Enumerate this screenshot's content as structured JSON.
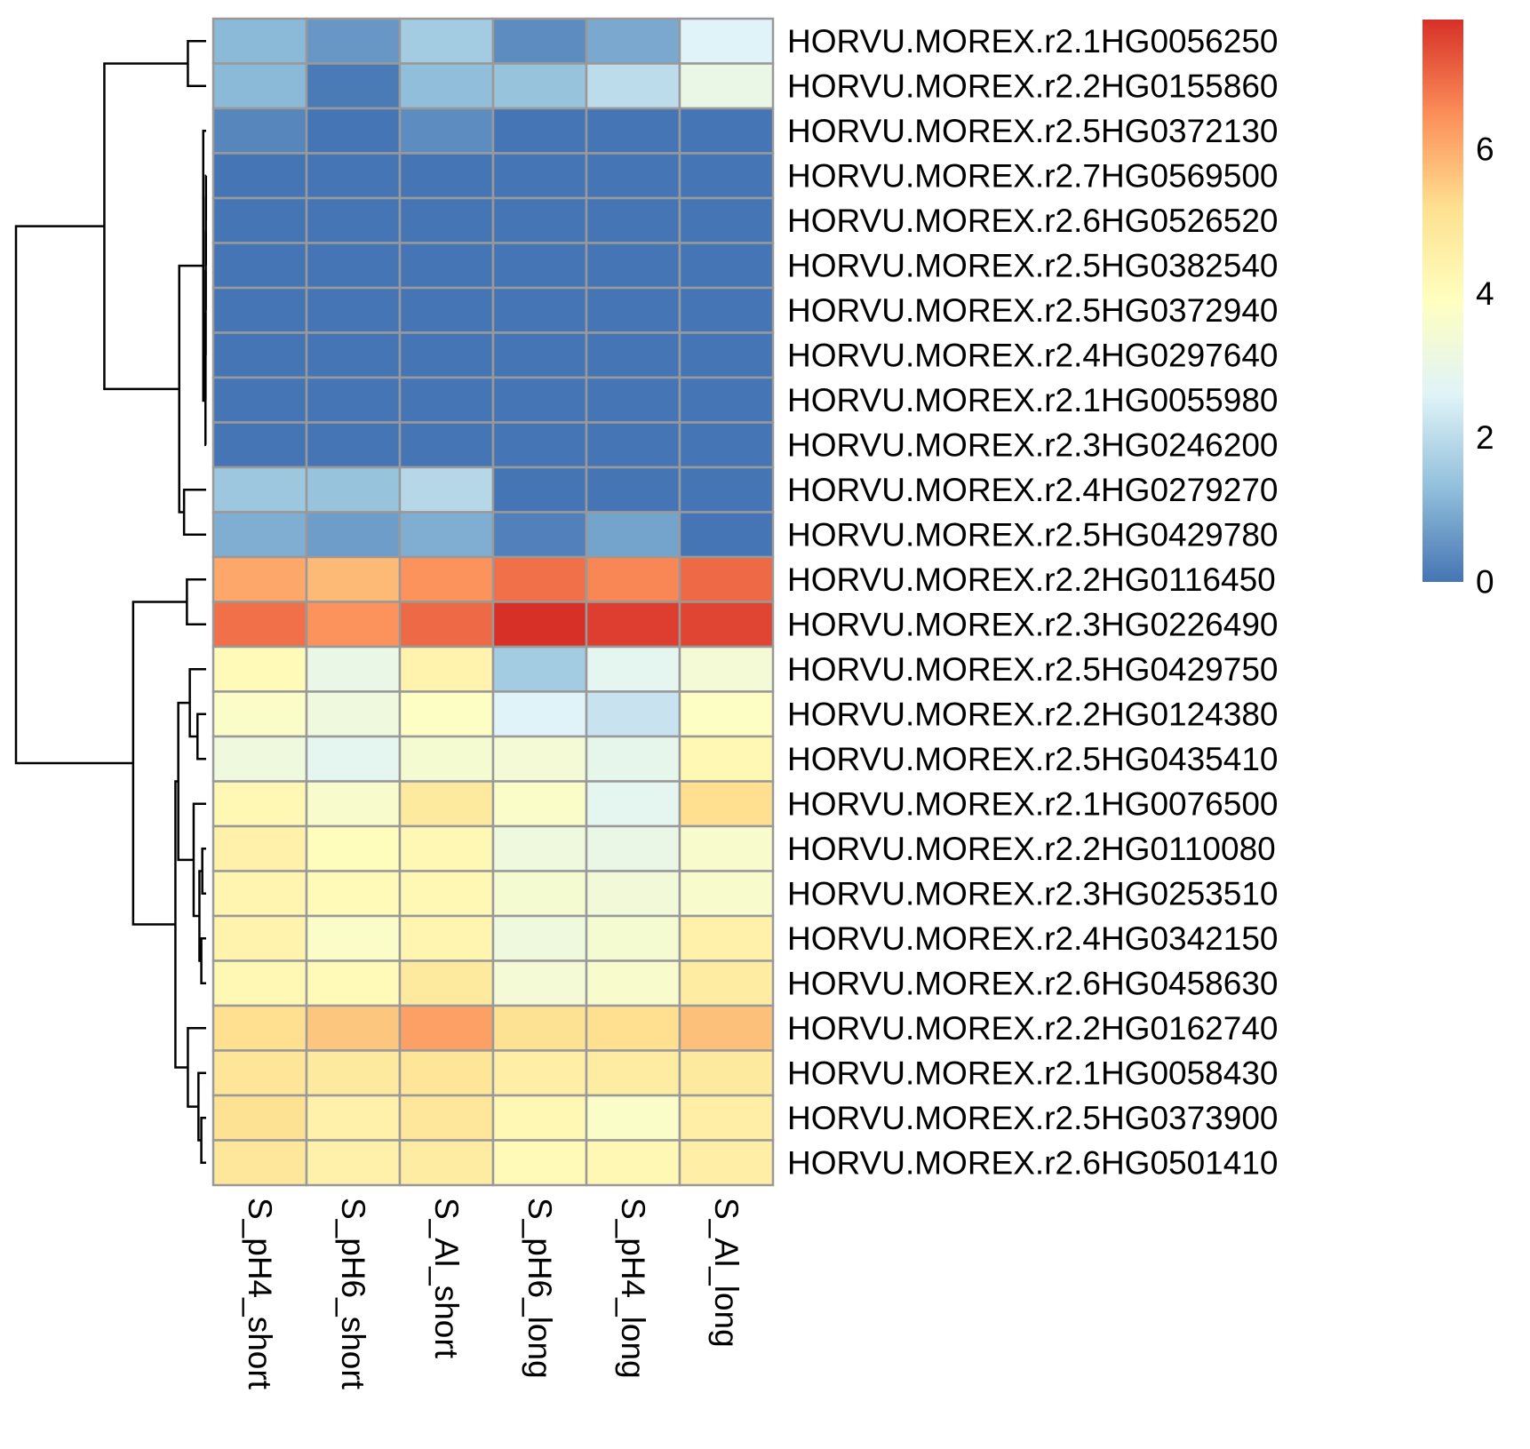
{
  "chart_data": {
    "type": "heatmap",
    "title": "",
    "xlabel": "",
    "ylabel": "",
    "columns": [
      "S_pH4_short",
      "S_pH6_short",
      "S_Al_short",
      "S_pH6_long",
      "S_pH4_long",
      "S_Al_long"
    ],
    "rows": [
      "HORVU.MOREX.r2.1HG0056250",
      "HORVU.MOREX.r2.2HG0155860",
      "HORVU.MOREX.r2.5HG0372130",
      "HORVU.MOREX.r2.7HG0569500",
      "HORVU.MOREX.r2.6HG0526520",
      "HORVU.MOREX.r2.5HG0382540",
      "HORVU.MOREX.r2.5HG0372940",
      "HORVU.MOREX.r2.4HG0297640",
      "HORVU.MOREX.r2.1HG0055980",
      "HORVU.MOREX.r2.3HG0246200",
      "HORVU.MOREX.r2.4HG0279270",
      "HORVU.MOREX.r2.5HG0429780",
      "HORVU.MOREX.r2.2HG0116450",
      "HORVU.MOREX.r2.3HG0226490",
      "HORVU.MOREX.r2.5HG0429750",
      "HORVU.MOREX.r2.2HG0124380",
      "HORVU.MOREX.r2.5HG0435410",
      "HORVU.MOREX.r2.1HG0076500",
      "HORVU.MOREX.r2.2HG0110080",
      "HORVU.MOREX.r2.3HG0253510",
      "HORVU.MOREX.r2.4HG0342150",
      "HORVU.MOREX.r2.6HG0458630",
      "HORVU.MOREX.r2.2HG0162740",
      "HORVU.MOREX.r2.1HG0058430",
      "HORVU.MOREX.r2.5HG0373900",
      "HORVU.MOREX.r2.6HG0501410"
    ],
    "values": [
      [
        1.2,
        0.6,
        1.6,
        0.4,
        0.9,
        2.6
      ],
      [
        1.2,
        0.1,
        1.3,
        1.4,
        2.0,
        3.0
      ],
      [
        0.3,
        0.0,
        0.4,
        0.0,
        0.0,
        0.0
      ],
      [
        0.0,
        0.0,
        0.0,
        0.0,
        0.0,
        0.0
      ],
      [
        0.0,
        0.0,
        0.0,
        0.0,
        0.0,
        0.0
      ],
      [
        0.0,
        0.0,
        0.0,
        0.0,
        0.0,
        0.0
      ],
      [
        0.0,
        0.0,
        0.0,
        0.0,
        0.0,
        0.0
      ],
      [
        0.0,
        0.0,
        0.0,
        0.0,
        0.0,
        0.0
      ],
      [
        0.0,
        0.0,
        0.0,
        0.0,
        0.0,
        0.0
      ],
      [
        0.0,
        0.0,
        0.0,
        0.0,
        0.0,
        0.0
      ],
      [
        1.5,
        1.4,
        1.9,
        0.0,
        0.0,
        0.0
      ],
      [
        1.0,
        0.7,
        1.0,
        0.2,
        0.8,
        0.0
      ],
      [
        6.1,
        5.8,
        6.4,
        6.9,
        6.6,
        7.0
      ],
      [
        6.9,
        6.4,
        7.0,
        7.8,
        7.6,
        7.5
      ],
      [
        4.1,
        3.0,
        4.4,
        1.6,
        2.8,
        3.4
      ],
      [
        3.7,
        3.2,
        3.8,
        2.6,
        2.2,
        3.8
      ],
      [
        3.2,
        2.8,
        3.5,
        3.4,
        2.9,
        4.2
      ],
      [
        4.2,
        3.6,
        4.8,
        3.7,
        2.8,
        5.2
      ],
      [
        4.5,
        4.0,
        4.2,
        3.2,
        3.0,
        3.6
      ],
      [
        4.3,
        4.1,
        4.2,
        3.5,
        3.3,
        3.6
      ],
      [
        4.4,
        3.7,
        4.3,
        3.2,
        3.5,
        4.5
      ],
      [
        4.2,
        4.1,
        4.8,
        3.4,
        3.6,
        4.7
      ],
      [
        5.2,
        5.6,
        6.2,
        5.1,
        5.2,
        5.7
      ],
      [
        5.0,
        4.8,
        5.0,
        4.6,
        4.7,
        4.8
      ],
      [
        5.1,
        4.5,
        4.9,
        4.2,
        3.7,
        4.6
      ],
      [
        4.9,
        4.5,
        4.7,
        4.1,
        4.2,
        4.6
      ]
    ],
    "color_scale": {
      "min": 0,
      "max": 7.8,
      "colors": [
        "#4575b4",
        "#91bfdb",
        "#e0f3f8",
        "#ffffbf",
        "#fee090",
        "#fc8d59",
        "#d73027"
      ],
      "legend_ticks": [
        0,
        2,
        4,
        6
      ],
      "legend_placement": "right"
    },
    "row_dendrogram": {
      "merges": [
        [
          -4,
          -5
        ],
        [
          -6,
          1
        ],
        [
          -7,
          2
        ],
        [
          -8,
          3
        ],
        [
          -9,
          4
        ],
        [
          -10,
          5
        ],
        [
          -3,
          6
        ],
        [
          -1,
          -2
        ],
        [
          -11,
          -12
        ],
        [
          7,
          9
        ],
        [
          8,
          10
        ],
        [
          -13,
          -14
        ],
        [
          -19,
          -20
        ],
        [
          -21,
          -22
        ],
        [
          13,
          14
        ],
        [
          -18,
          15
        ],
        [
          -16,
          -17
        ],
        [
          -15,
          17
        ],
        [
          16,
          18
        ],
        [
          -25,
          -26
        ],
        [
          -24,
          20
        ],
        [
          -23,
          21
        ],
        [
          19,
          22
        ],
        [
          12,
          23
        ],
        [
          11,
          24
        ]
      ],
      "heights": [
        0.02,
        0.03,
        0.04,
        0.05,
        0.06,
        0.07,
        0.3,
        1.9,
        2.3,
        2.8,
        10.6,
        2.0,
        0.4,
        0.5,
        0.7,
        1.3,
        0.9,
        1.7,
        2.9,
        0.5,
        0.8,
        1.9,
        3.2,
        7.6,
        19.8
      ]
    }
  }
}
